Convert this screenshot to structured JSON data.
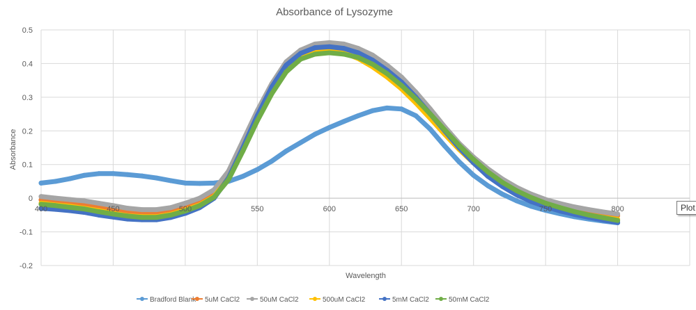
{
  "chart_data": {
    "type": "line",
    "title": "Absorbance of Lysozyme",
    "xlabel": "Wavelength",
    "ylabel": "Absorbance",
    "xlim": [
      400,
      850
    ],
    "ylim": [
      -0.2,
      0.5
    ],
    "x_ticks": [
      400,
      450,
      500,
      550,
      600,
      650,
      700,
      750,
      800
    ],
    "x_tick_labels": [
      "400",
      "450",
      "500",
      "550",
      "600",
      "650",
      "700",
      "750",
      "800"
    ],
    "y_ticks": [
      0.5,
      0.4,
      0.3,
      0.2,
      0.1,
      0,
      -0.1,
      -0.2
    ],
    "y_tick_labels": [
      "0.5",
      "0.4",
      "0.3",
      "0.2",
      "0.1",
      "0",
      "-0.1",
      "-0.2"
    ],
    "grid": true,
    "legend_position": "bottom",
    "x": [
      400,
      410,
      420,
      430,
      440,
      450,
      460,
      470,
      480,
      490,
      500,
      510,
      520,
      530,
      540,
      550,
      560,
      570,
      580,
      590,
      600,
      610,
      620,
      630,
      640,
      650,
      660,
      670,
      680,
      690,
      700,
      710,
      720,
      730,
      740,
      750,
      760,
      770,
      780,
      790,
      800
    ],
    "series": [
      {
        "name": "Bradford Blank",
        "color": "#5b9bd5",
        "values": [
          0.045,
          0.05,
          0.058,
          0.068,
          0.073,
          0.073,
          0.07,
          0.066,
          0.06,
          0.052,
          0.045,
          0.044,
          0.045,
          0.05,
          0.065,
          0.085,
          0.11,
          0.14,
          0.165,
          0.19,
          0.21,
          0.228,
          0.245,
          0.26,
          0.268,
          0.265,
          0.245,
          0.205,
          0.155,
          0.108,
          0.068,
          0.037,
          0.012,
          -0.008,
          -0.024,
          -0.036,
          -0.046,
          -0.055,
          -0.062,
          -0.068,
          -0.073
        ]
      },
      {
        "name": "5uM CaCl2",
        "color": "#ed7d31",
        "values": [
          -0.005,
          -0.01,
          -0.014,
          -0.018,
          -0.025,
          -0.032,
          -0.04,
          -0.044,
          -0.044,
          -0.038,
          -0.025,
          -0.01,
          0.015,
          0.07,
          0.16,
          0.25,
          0.33,
          0.395,
          0.432,
          0.45,
          0.455,
          0.45,
          0.435,
          0.412,
          0.382,
          0.347,
          0.303,
          0.255,
          0.205,
          0.158,
          0.118,
          0.083,
          0.053,
          0.028,
          0.008,
          -0.008,
          -0.02,
          -0.03,
          -0.038,
          -0.045,
          -0.052
        ]
      },
      {
        "name": "50uM CaCl2",
        "color": "#a5a5a5",
        "values": [
          0.005,
          0.0,
          -0.004,
          -0.008,
          -0.015,
          -0.022,
          -0.03,
          -0.034,
          -0.034,
          -0.028,
          -0.015,
          0.0,
          0.025,
          0.08,
          0.17,
          0.26,
          0.34,
          0.405,
          0.44,
          0.458,
          0.462,
          0.458,
          0.445,
          0.425,
          0.395,
          0.36,
          0.315,
          0.265,
          0.212,
          0.163,
          0.122,
          0.087,
          0.057,
          0.032,
          0.012,
          -0.004,
          -0.016,
          -0.026,
          -0.034,
          -0.041,
          -0.047
        ]
      },
      {
        "name": "500uM CaCl2",
        "color": "#ffc000",
        "values": [
          -0.015,
          -0.02,
          -0.024,
          -0.03,
          -0.037,
          -0.045,
          -0.052,
          -0.055,
          -0.055,
          -0.048,
          -0.035,
          -0.02,
          0.005,
          0.06,
          0.15,
          0.24,
          0.32,
          0.385,
          0.42,
          0.438,
          0.44,
          0.432,
          0.415,
          0.39,
          0.36,
          0.325,
          0.283,
          0.237,
          0.19,
          0.145,
          0.105,
          0.07,
          0.04,
          0.016,
          -0.004,
          -0.02,
          -0.032,
          -0.042,
          -0.05,
          -0.057,
          -0.063
        ]
      },
      {
        "name": "5mM CaCl2",
        "color": "#4472c4",
        "values": [
          -0.03,
          -0.033,
          -0.037,
          -0.042,
          -0.05,
          -0.056,
          -0.062,
          -0.064,
          -0.064,
          -0.057,
          -0.045,
          -0.028,
          0.0,
          0.06,
          0.15,
          0.245,
          0.33,
          0.395,
          0.43,
          0.447,
          0.45,
          0.445,
          0.432,
          0.41,
          0.38,
          0.345,
          0.3,
          0.25,
          0.2,
          0.15,
          0.105,
          0.065,
          0.035,
          0.01,
          -0.01,
          -0.025,
          -0.038,
          -0.048,
          -0.057,
          -0.065,
          -0.072
        ]
      },
      {
        "name": "50mM CaCl2",
        "color": "#70ad47",
        "values": [
          -0.018,
          -0.022,
          -0.027,
          -0.032,
          -0.04,
          -0.047,
          -0.053,
          -0.057,
          -0.057,
          -0.05,
          -0.038,
          -0.022,
          0.003,
          0.055,
          0.14,
          0.23,
          0.31,
          0.375,
          0.413,
          0.428,
          0.432,
          0.428,
          0.418,
          0.398,
          0.37,
          0.335,
          0.295,
          0.25,
          0.203,
          0.157,
          0.115,
          0.078,
          0.047,
          0.022,
          0.002,
          -0.015,
          -0.028,
          -0.04,
          -0.05,
          -0.058,
          -0.066
        ]
      }
    ]
  },
  "tooltip": {
    "text": "Plot"
  }
}
